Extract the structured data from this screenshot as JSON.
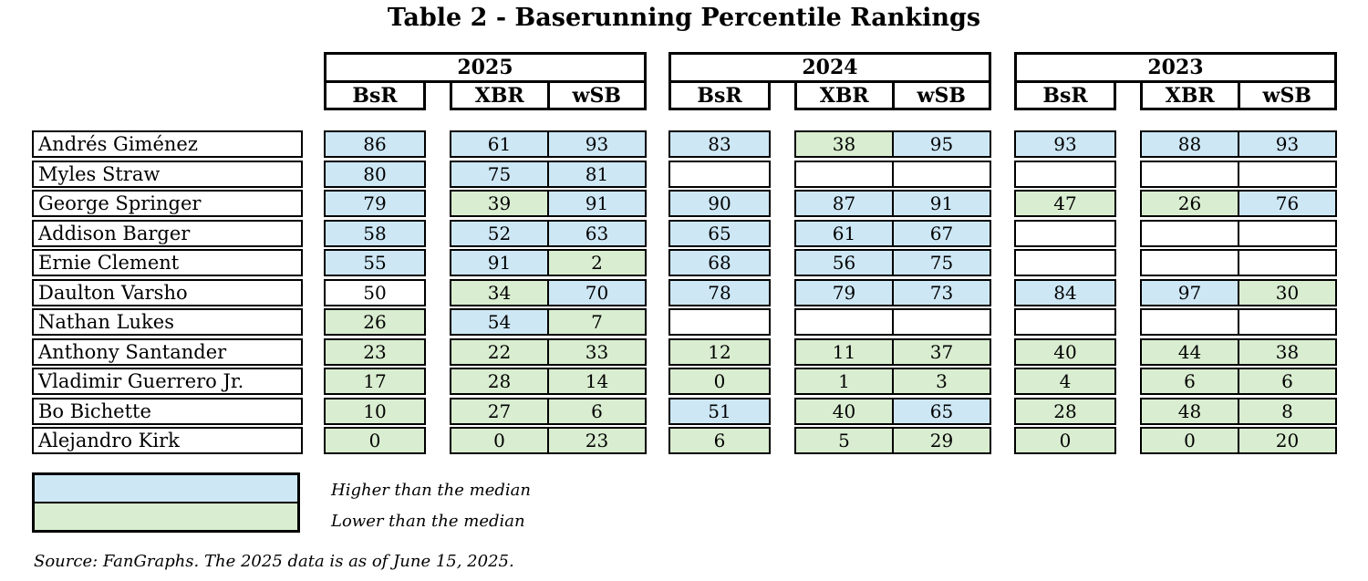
{
  "chart_data": {
    "type": "table",
    "title": "Table 2 - Baserunning Percentile Rankings",
    "years": [
      "2025",
      "2024",
      "2023"
    ],
    "year_keys": [
      "y2025",
      "y2024",
      "y2023"
    ],
    "stats": [
      "BsR",
      "XBR",
      "wSB"
    ],
    "cell_colors": {
      "hi": "#CDE7F5",
      "lo": "#D9EDD0",
      "no": "#FFFFFF"
    },
    "rows": [
      {
        "player": "Andrés Giménez",
        "y2025": [
          [
            "86",
            "hi"
          ],
          [
            "61",
            "hi"
          ],
          [
            "93",
            "hi"
          ]
        ],
        "y2024": [
          [
            "83",
            "hi"
          ],
          [
            "38",
            "lo"
          ],
          [
            "95",
            "hi"
          ]
        ],
        "y2023": [
          [
            "93",
            "hi"
          ],
          [
            "88",
            "hi"
          ],
          [
            "93",
            "hi"
          ]
        ]
      },
      {
        "player": "Myles Straw",
        "y2025": [
          [
            "80",
            "hi"
          ],
          [
            "75",
            "hi"
          ],
          [
            "81",
            "hi"
          ]
        ],
        "y2024": [
          [
            "",
            "no"
          ],
          [
            "",
            "no"
          ],
          [
            "",
            "no"
          ]
        ],
        "y2023": [
          [
            "",
            "no"
          ],
          [
            "",
            "no"
          ],
          [
            "",
            "no"
          ]
        ]
      },
      {
        "player": "George Springer",
        "y2025": [
          [
            "79",
            "hi"
          ],
          [
            "39",
            "lo"
          ],
          [
            "91",
            "hi"
          ]
        ],
        "y2024": [
          [
            "90",
            "hi"
          ],
          [
            "87",
            "hi"
          ],
          [
            "91",
            "hi"
          ]
        ],
        "y2023": [
          [
            "47",
            "lo"
          ],
          [
            "26",
            "lo"
          ],
          [
            "76",
            "hi"
          ]
        ]
      },
      {
        "player": "Addison Barger",
        "y2025": [
          [
            "58",
            "hi"
          ],
          [
            "52",
            "hi"
          ],
          [
            "63",
            "hi"
          ]
        ],
        "y2024": [
          [
            "65",
            "hi"
          ],
          [
            "61",
            "hi"
          ],
          [
            "67",
            "hi"
          ]
        ],
        "y2023": [
          [
            "",
            "no"
          ],
          [
            "",
            "no"
          ],
          [
            "",
            "no"
          ]
        ]
      },
      {
        "player": "Ernie Clement",
        "y2025": [
          [
            "55",
            "hi"
          ],
          [
            "91",
            "hi"
          ],
          [
            "2",
            "lo"
          ]
        ],
        "y2024": [
          [
            "68",
            "hi"
          ],
          [
            "56",
            "hi"
          ],
          [
            "75",
            "hi"
          ]
        ],
        "y2023": [
          [
            "",
            "no"
          ],
          [
            "",
            "no"
          ],
          [
            "",
            "no"
          ]
        ]
      },
      {
        "player": "Daulton Varsho",
        "y2025": [
          [
            "50",
            "no"
          ],
          [
            "34",
            "lo"
          ],
          [
            "70",
            "hi"
          ]
        ],
        "y2024": [
          [
            "78",
            "hi"
          ],
          [
            "79",
            "hi"
          ],
          [
            "73",
            "hi"
          ]
        ],
        "y2023": [
          [
            "84",
            "hi"
          ],
          [
            "97",
            "hi"
          ],
          [
            "30",
            "lo"
          ]
        ]
      },
      {
        "player": "Nathan Lukes",
        "y2025": [
          [
            "26",
            "lo"
          ],
          [
            "54",
            "hi"
          ],
          [
            "7",
            "lo"
          ]
        ],
        "y2024": [
          [
            "",
            "no"
          ],
          [
            "",
            "no"
          ],
          [
            "",
            "no"
          ]
        ],
        "y2023": [
          [
            "",
            "no"
          ],
          [
            "",
            "no"
          ],
          [
            "",
            "no"
          ]
        ]
      },
      {
        "player": "Anthony Santander",
        "y2025": [
          [
            "23",
            "lo"
          ],
          [
            "22",
            "lo"
          ],
          [
            "33",
            "lo"
          ]
        ],
        "y2024": [
          [
            "12",
            "lo"
          ],
          [
            "11",
            "lo"
          ],
          [
            "37",
            "lo"
          ]
        ],
        "y2023": [
          [
            "40",
            "lo"
          ],
          [
            "44",
            "lo"
          ],
          [
            "38",
            "lo"
          ]
        ]
      },
      {
        "player": "Vladimir Guerrero Jr.",
        "y2025": [
          [
            "17",
            "lo"
          ],
          [
            "28",
            "lo"
          ],
          [
            "14",
            "lo"
          ]
        ],
        "y2024": [
          [
            "0",
            "lo"
          ],
          [
            "1",
            "lo"
          ],
          [
            "3",
            "lo"
          ]
        ],
        "y2023": [
          [
            "4",
            "lo"
          ],
          [
            "6",
            "lo"
          ],
          [
            "6",
            "lo"
          ]
        ]
      },
      {
        "player": "Bo Bichette",
        "y2025": [
          [
            "10",
            "lo"
          ],
          [
            "27",
            "lo"
          ],
          [
            "6",
            "lo"
          ]
        ],
        "y2024": [
          [
            "51",
            "hi"
          ],
          [
            "40",
            "lo"
          ],
          [
            "65",
            "hi"
          ]
        ],
        "y2023": [
          [
            "28",
            "lo"
          ],
          [
            "48",
            "lo"
          ],
          [
            "8",
            "lo"
          ]
        ]
      },
      {
        "player": "Alejandro Kirk",
        "y2025": [
          [
            "0",
            "lo"
          ],
          [
            "0",
            "lo"
          ],
          [
            "23",
            "lo"
          ]
        ],
        "y2024": [
          [
            "6",
            "lo"
          ],
          [
            "5",
            "lo"
          ],
          [
            "29",
            "lo"
          ]
        ],
        "y2023": [
          [
            "0",
            "lo"
          ],
          [
            "0",
            "lo"
          ],
          [
            "20",
            "lo"
          ]
        ]
      }
    ],
    "legend": [
      {
        "swatch": "hi",
        "label": "Higher than the median"
      },
      {
        "swatch": "lo",
        "label": "Lower than the median"
      }
    ],
    "source": "Source: FanGraphs. The 2025 data is as of June 15, 2025."
  }
}
